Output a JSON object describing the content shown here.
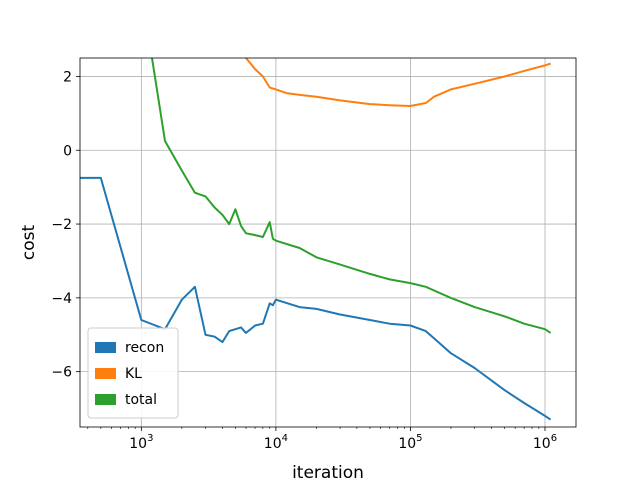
{
  "chart_data": {
    "type": "line",
    "xlabel": "iteration",
    "ylabel": "cost",
    "xscale": "log",
    "xlim": [
      350,
      1700000
    ],
    "ylim": [
      -7.5,
      2.5
    ],
    "grid": true,
    "legend_position": "lower-left",
    "x_ticks": [
      {
        "value": 1000,
        "base": "10",
        "exp": "3"
      },
      {
        "value": 10000,
        "base": "10",
        "exp": "4"
      },
      {
        "value": 100000,
        "base": "10",
        "exp": "5"
      },
      {
        "value": 1000000,
        "base": "10",
        "exp": "6"
      }
    ],
    "y_ticks": [
      {
        "value": 2,
        "label": "2"
      },
      {
        "value": 0,
        "label": "0"
      },
      {
        "value": -2,
        "label": "−2"
      },
      {
        "value": -4,
        "label": "−4"
      },
      {
        "value": -6,
        "label": "−6"
      }
    ],
    "series": [
      {
        "name": "recon",
        "color": "#1f77b4",
        "x": [
          350,
          500,
          1000,
          1500,
          2000,
          2500,
          3000,
          3500,
          4000,
          4500,
          5000,
          5500,
          6000,
          7000,
          8000,
          9000,
          9500,
          10000,
          15000,
          20000,
          30000,
          50000,
          70000,
          100000,
          130000,
          150000,
          200000,
          300000,
          500000,
          700000,
          1000000,
          1100000
        ],
        "y": [
          -0.75,
          -0.75,
          -4.6,
          -4.85,
          -4.05,
          -3.7,
          -5.0,
          -5.05,
          -5.2,
          -4.9,
          -4.85,
          -4.8,
          -4.95,
          -4.75,
          -4.7,
          -4.15,
          -4.2,
          -4.05,
          -4.25,
          -4.3,
          -4.45,
          -4.6,
          -4.7,
          -4.75,
          -4.9,
          -5.1,
          -5.5,
          -5.9,
          -6.5,
          -6.85,
          -7.2,
          -7.3
        ]
      },
      {
        "name": "KL",
        "color": "#ff7f0e",
        "x": [
          6000,
          7000,
          8000,
          9000,
          10000,
          12000,
          15000,
          20000,
          30000,
          50000,
          70000,
          100000,
          130000,
          150000,
          200000,
          300000,
          500000,
          700000,
          1000000,
          1100000
        ],
        "y": [
          2.5,
          2.2,
          2.0,
          1.7,
          1.65,
          1.55,
          1.5,
          1.45,
          1.35,
          1.25,
          1.22,
          1.2,
          1.28,
          1.45,
          1.65,
          1.8,
          2.0,
          2.15,
          2.3,
          2.35
        ]
      },
      {
        "name": "total",
        "color": "#2ca02c",
        "x": [
          1200,
          1500,
          2000,
          2500,
          3000,
          3500,
          4000,
          4500,
          5000,
          5500,
          6000,
          7000,
          8000,
          9000,
          9500,
          10000,
          15000,
          20000,
          30000,
          50000,
          70000,
          100000,
          130000,
          150000,
          200000,
          300000,
          500000,
          700000,
          1000000,
          1100000
        ],
        "y": [
          2.5,
          0.25,
          -0.55,
          -1.15,
          -1.25,
          -1.55,
          -1.75,
          -2.0,
          -1.6,
          -2.05,
          -2.25,
          -2.3,
          -2.35,
          -1.95,
          -2.4,
          -2.45,
          -2.65,
          -2.9,
          -3.1,
          -3.35,
          -3.5,
          -3.6,
          -3.7,
          -3.8,
          -4.0,
          -4.25,
          -4.5,
          -4.7,
          -4.85,
          -4.95
        ]
      }
    ]
  }
}
